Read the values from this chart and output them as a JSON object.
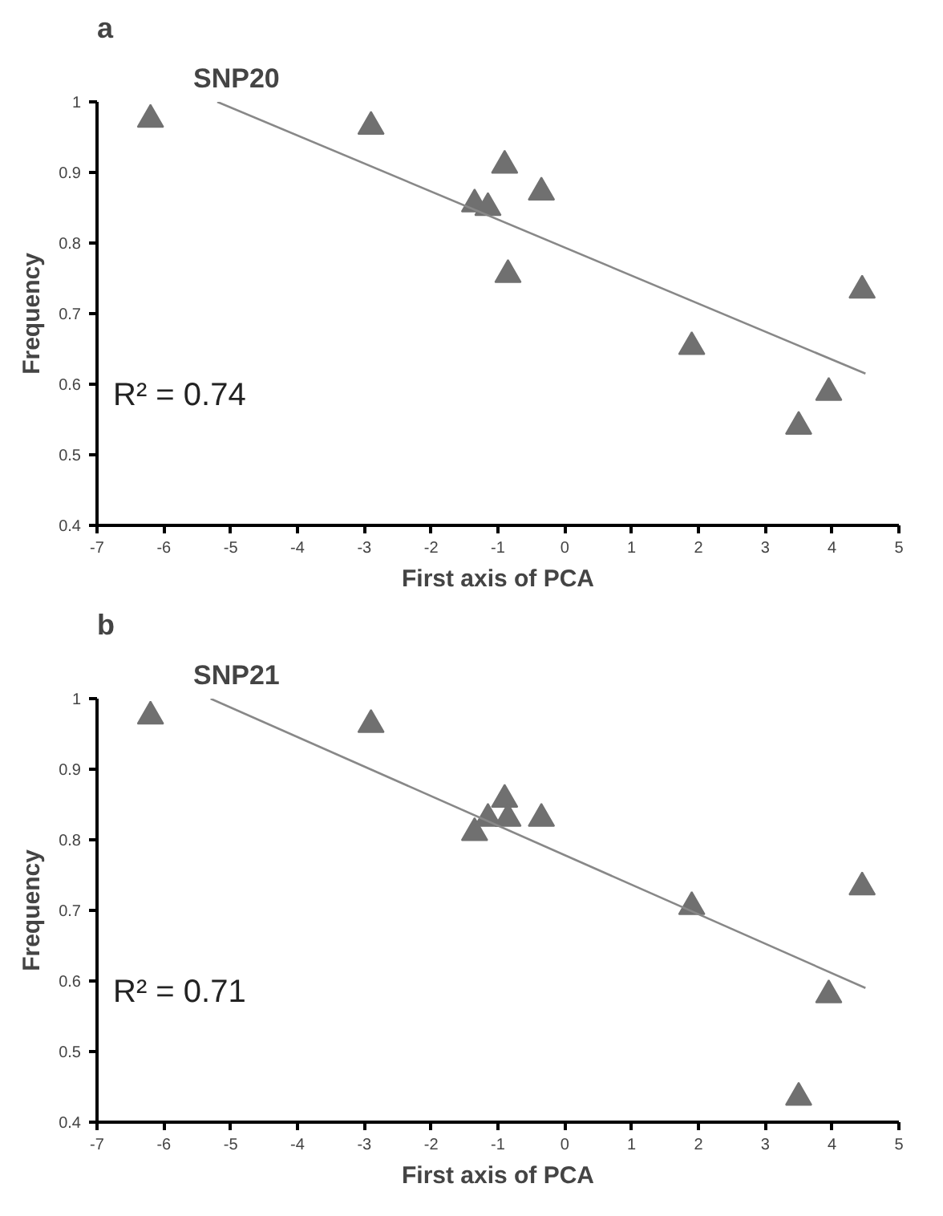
{
  "chart_data": [
    {
      "type": "scatter",
      "title": "SNP20",
      "xlabel": "First axis of PCA",
      "ylabel": "Frequency",
      "annotations": [
        "a",
        "R² = 0.74"
      ],
      "xlim": [
        -7,
        5
      ],
      "ylim": [
        0.4,
        1
      ],
      "xticks": [
        -7,
        -6,
        -5,
        -4,
        -3,
        -2,
        -1,
        0,
        1,
        2,
        3,
        4,
        5
      ],
      "yticks": [
        0.4,
        0.5,
        0.6,
        0.7,
        0.8,
        0.9,
        1
      ],
      "grid": false,
      "marker": "triangle",
      "series": [
        {
          "color": "#707070",
          "x": [
            -6.2,
            -2.9,
            -1.35,
            -1.15,
            -0.9,
            -0.85,
            -0.35,
            1.9,
            3.5,
            3.95,
            4.45
          ],
          "values": [
            0.975,
            0.965,
            0.855,
            0.85,
            0.91,
            0.755,
            0.872,
            0.653,
            0.54,
            0.588,
            0.733
          ]
        },
        {
          "type": "line",
          "marker": "none",
          "color": "#888888",
          "x": [
            -5.2,
            4.5
          ],
          "values": [
            1.0,
            0.615
          ]
        }
      ]
    },
    {
      "type": "scatter",
      "title": "SNP21",
      "xlabel": "First axis of PCA",
      "ylabel": "Frequency",
      "annotations": [
        "b",
        "R² = 0.71"
      ],
      "xlim": [
        -7,
        5
      ],
      "ylim": [
        0.4,
        1
      ],
      "xticks": [
        -7,
        -6,
        -5,
        -4,
        -3,
        -2,
        -1,
        0,
        1,
        2,
        3,
        4,
        5
      ],
      "yticks": [
        0.4,
        0.5,
        0.6,
        0.7,
        0.8,
        0.9,
        1
      ],
      "grid": false,
      "marker": "triangle",
      "series": [
        {
          "color": "#707070",
          "x": [
            -6.2,
            -2.9,
            -1.35,
            -1.15,
            -0.9,
            -0.85,
            -0.35,
            1.9,
            3.5,
            3.95,
            4.45
          ],
          "values": [
            0.975,
            0.963,
            0.81,
            0.83,
            0.857,
            0.83,
            0.83,
            0.705,
            0.435,
            0.58,
            0.733
          ]
        },
        {
          "type": "line",
          "marker": "none",
          "color": "#888888",
          "x": [
            -5.3,
            4.5
          ],
          "values": [
            1.0,
            0.59
          ]
        }
      ]
    }
  ]
}
